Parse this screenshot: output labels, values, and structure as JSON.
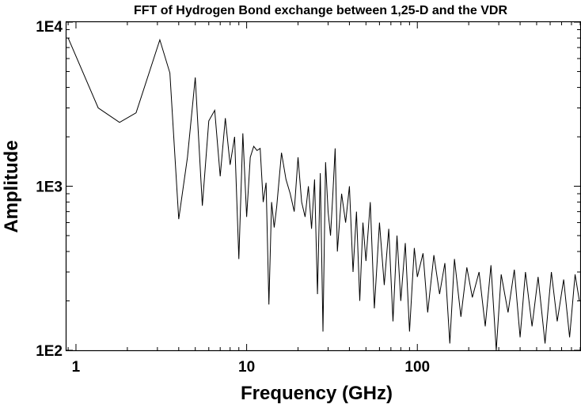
{
  "chart_data": {
    "type": "line",
    "title": "FFT of Hydrogen Bond exchange between 1,25-D and the VDR",
    "xlabel": "Frequency (GHz)",
    "ylabel": "Amplitude",
    "x_scale": "log",
    "y_scale": "log",
    "xlim": [
      0.88,
      900
    ],
    "ylim": [
      100,
      10000
    ],
    "x_ticks": [
      {
        "value": 1,
        "label": "1"
      },
      {
        "value": 10,
        "label": "10"
      },
      {
        "value": 100,
        "label": "100"
      }
    ],
    "y_ticks": [
      {
        "value": 100,
        "label": "1E2"
      },
      {
        "value": 1000,
        "label": "1E3"
      },
      {
        "value": 10000,
        "label": "1E4"
      }
    ],
    "grid": false,
    "legend": "none",
    "line_color": "#000000",
    "series": [
      {
        "x": [
          0.9,
          1.35,
          1.8,
          2.25,
          3.1,
          3.55,
          4.0,
          4.5,
          5.0,
          5.5,
          6.0,
          6.5,
          7.0,
          7.5,
          8.0,
          8.5,
          9.0,
          9.5,
          10.0,
          10.5,
          11.0,
          11.5,
          12.0,
          12.5,
          13.0,
          13.5,
          14.0,
          14.5,
          15.0,
          15.5,
          16.0,
          17.0,
          18.0,
          19.0,
          20.0,
          21.0,
          22.0,
          23.0,
          24.0,
          25.0,
          26.0,
          27.0,
          28.0,
          29.0,
          30.0,
          31.0,
          32.0,
          33.0,
          34.0,
          36.0,
          38.0,
          40.0,
          42.0,
          44.0,
          46.0,
          48.0,
          50.0,
          53.0,
          56.0,
          60.0,
          64.0,
          68.0,
          72.0,
          76.0,
          80.0,
          85.0,
          90.0,
          96.0,
          100.0,
          108.0,
          115.0,
          125.0,
          135.0,
          145.0,
          155.0,
          165.0,
          180.0,
          195.0,
          210.0,
          230.0,
          250.0,
          270.0,
          290.0,
          310.0,
          340.0,
          370.0,
          400.0,
          430.0,
          470.0,
          510.0,
          560.0,
          610.0,
          660.0,
          720.0,
          780.0,
          840.0,
          890.0
        ],
        "y": [
          8000,
          3000,
          2450,
          2800,
          7800,
          4900,
          630,
          1500,
          4600,
          760,
          2500,
          2900,
          1150,
          2600,
          1350,
          2000,
          360,
          2100,
          650,
          1500,
          1750,
          1650,
          1700,
          800,
          1050,
          190,
          800,
          560,
          750,
          1100,
          1600,
          1100,
          900,
          700,
          1500,
          800,
          650,
          1000,
          550,
          1100,
          220,
          1200,
          130,
          1400,
          700,
          500,
          900,
          1700,
          400,
          900,
          600,
          1000,
          300,
          700,
          200,
          600,
          350,
          800,
          180,
          600,
          250,
          550,
          150,
          500,
          200,
          450,
          130,
          420,
          280,
          390,
          170,
          380,
          220,
          340,
          110,
          360,
          160,
          320,
          210,
          300,
          140,
          330,
          100,
          290,
          170,
          310,
          120,
          300,
          140,
          280,
          110,
          300,
          150,
          270,
          120,
          290,
          200
        ]
      }
    ]
  }
}
